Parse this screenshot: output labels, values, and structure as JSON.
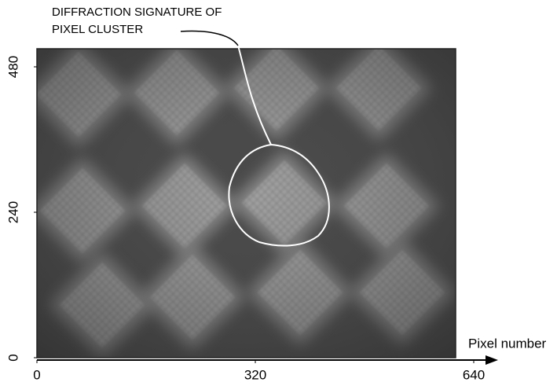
{
  "chart_data": {
    "type": "image",
    "annotation": [
      "DIFFRACTION SIGNATURE OF",
      "PIXEL CLUSTER"
    ],
    "xlabel": "Pixel number",
    "xlim": [
      0,
      640
    ],
    "ylim": [
      0,
      480
    ],
    "xticks": [
      0,
      320,
      640
    ],
    "yticks": [
      0,
      240,
      480
    ]
  }
}
